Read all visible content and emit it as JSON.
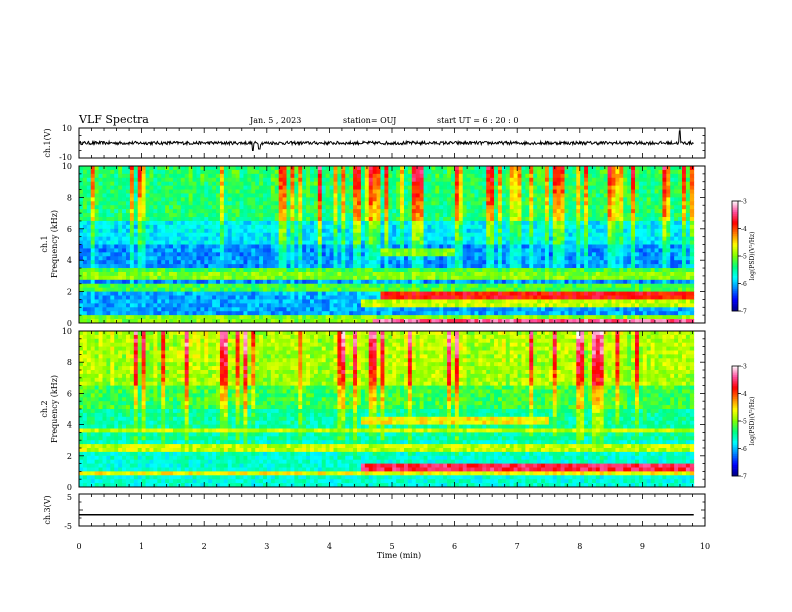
{
  "header": {
    "title": "VLF Spectra",
    "date": "Jan. 5 , 2023",
    "station": "station= OUJ",
    "start": "start UT =  6 : 20 : 0"
  },
  "colorbar": {
    "label": "log(PSD)(V²/Hz)",
    "ticks": [
      "-3",
      "-4",
      "-5",
      "-6",
      "-7"
    ],
    "colors": [
      "#000080",
      "#0000ff",
      "#0080ff",
      "#00ffff",
      "#00ff80",
      "#80ff00",
      "#ffff00",
      "#ff8000",
      "#ff0000",
      "#ff4d9e",
      "#ffffff"
    ]
  },
  "chart_data": [
    {
      "type": "line",
      "panel": "ch1-waveform",
      "ylabel": "ch.1(V)",
      "yticks": [
        "10",
        "-10"
      ],
      "ylim": [
        -10,
        10
      ],
      "baseline": 0,
      "spikes": [
        {
          "t": 2.78,
          "v": -5
        },
        {
          "t": 2.88,
          "v": -4
        },
        {
          "t": 9.6,
          "v": 8
        }
      ]
    },
    {
      "type": "heatmap",
      "panel": "ch1-spectrogram",
      "ylabel_1": "ch.1",
      "ylabel_2": "Frequency (kHz)",
      "yticks": [
        "0",
        "2",
        "4",
        "6",
        "8",
        "10"
      ],
      "ylim": [
        0,
        10
      ],
      "xlim": [
        0,
        10
      ],
      "bands": [
        {
          "f": 0.3,
          "t0": 0,
          "t1": 9.8,
          "level": 0.5
        },
        {
          "f": 0.15,
          "t0": 4.7,
          "t1": 9.8,
          "level": 0.9
        },
        {
          "f": 1.3,
          "t0": 4.5,
          "t1": 9.8,
          "level": 0.55
        },
        {
          "f": 1.7,
          "t0": 4.8,
          "t1": 9.8,
          "level": 0.8
        },
        {
          "f": 2.3,
          "t0": 0,
          "t1": 9.8,
          "level": 0.45
        },
        {
          "f": 3.0,
          "t0": 0,
          "t1": 9.8,
          "level": 0.5
        },
        {
          "f": 3.4,
          "t0": 0,
          "t1": 9.8,
          "level": 0.45
        },
        {
          "f": 4.5,
          "t0": 4.8,
          "t1": 6.0,
          "level": 0.5
        }
      ]
    },
    {
      "type": "heatmap",
      "panel": "ch2-spectrogram",
      "ylabel_1": "ch.2",
      "ylabel_2": "Frequency (kHz)",
      "yticks": [
        "0",
        "2",
        "4",
        "6",
        "8",
        "10"
      ],
      "ylim": [
        0,
        10
      ],
      "xlim": [
        0,
        10
      ],
      "bands": [
        {
          "f": 1.3,
          "t0": 4.5,
          "t1": 9.8,
          "level": 0.85
        },
        {
          "f": 0.9,
          "t0": 0,
          "t1": 9.8,
          "level": 0.6
        },
        {
          "f": 2.5,
          "t0": 0,
          "t1": 9.8,
          "level": 0.55
        },
        {
          "f": 3.6,
          "t0": 0,
          "t1": 9.8,
          "level": 0.55
        },
        {
          "f": 4.3,
          "t0": 4.5,
          "t1": 7.5,
          "level": 0.6
        }
      ]
    },
    {
      "type": "line",
      "panel": "ch3-waveform",
      "ylabel": "ch.3(V)",
      "yticks": [
        "5",
        "-5"
      ],
      "ylim": [
        -5,
        5
      ],
      "baseline": -1.5,
      "xlabel": "Time (min)",
      "xticks": [
        "0",
        "1",
        "2",
        "3",
        "4",
        "5",
        "6",
        "7",
        "8",
        "9",
        "10"
      ],
      "xlim": [
        0,
        10
      ]
    }
  ]
}
